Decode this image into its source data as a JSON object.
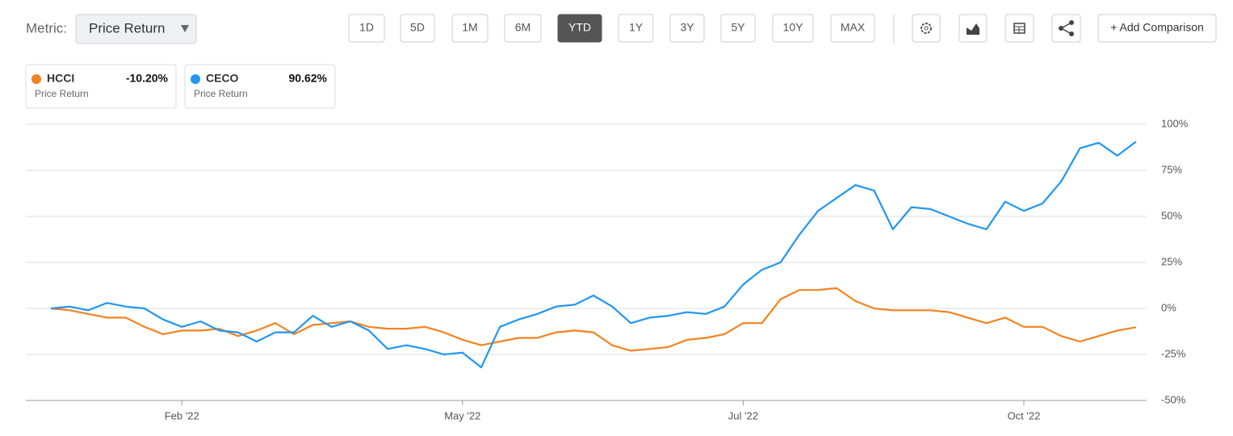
{
  "toolbar": {
    "metric_label": "Metric:",
    "metric_value": "Price Return",
    "ranges": [
      "1D",
      "5D",
      "1M",
      "6M",
      "YTD",
      "1Y",
      "3Y",
      "5Y",
      "10Y",
      "MAX"
    ],
    "selected": "YTD",
    "add_button": "+ Add Comparison"
  },
  "chart_data": {
    "type": "line",
    "categories": [
      null,
      null,
      null,
      null,
      null,
      null,
      null,
      "Feb '22",
      null,
      null,
      null,
      null,
      null,
      null,
      null,
      null,
      null,
      null,
      null,
      null,
      null,
      null,
      "May '22",
      null,
      null,
      null,
      null,
      null,
      null,
      null,
      null,
      null,
      null,
      null,
      null,
      null,
      null,
      "Jul '22",
      null,
      null,
      null,
      null,
      null,
      null,
      null,
      null,
      null,
      null,
      null,
      null,
      null,
      null,
      "Oct '22",
      null,
      null,
      null,
      null,
      null,
      null
    ],
    "series": [
      {
        "name": "HCCI",
        "color": "#f5821f",
        "metric": "Price Return",
        "change": {
          "value": -10.2,
          "label": "-10.20%"
        },
        "values": [
          0,
          -1,
          -3,
          -5,
          -5,
          -10,
          -14,
          -12,
          -12,
          -11,
          -15,
          -12,
          -8,
          -14,
          -9,
          -8,
          -7,
          -10,
          -11,
          -11,
          -10,
          -13,
          -17,
          -20,
          -18,
          -16,
          -16,
          -13,
          -12,
          -13,
          -20,
          -23,
          -22,
          -21,
          -17,
          -16,
          -14,
          -8,
          -8,
          5,
          10,
          10,
          11,
          4,
          0,
          -1,
          -1,
          -1,
          -2,
          -5,
          -8,
          -5,
          -10,
          -10,
          -15,
          -18,
          -15,
          -12,
          -10.2
        ]
      },
      {
        "name": "CECO",
        "color": "#2196f3",
        "metric": "Price Return",
        "change": {
          "value": 90.62,
          "label": "90.62%"
        },
        "values": [
          0,
          1,
          -1,
          3,
          1,
          0,
          -6,
          -10,
          -7,
          -12,
          -13,
          -18,
          -13,
          -13,
          -4,
          -10,
          -7,
          -12,
          -22,
          -20,
          -22,
          -25,
          -24,
          -32,
          -10,
          -6,
          -3,
          1,
          2,
          7,
          1,
          -8,
          -5,
          -4,
          -2,
          -3,
          1,
          13,
          21,
          25,
          40,
          53,
          60,
          67,
          64,
          43,
          55,
          54,
          50,
          46,
          43,
          58,
          53,
          57,
          69,
          87,
          90,
          83,
          90.62
        ]
      }
    ],
    "ylim": [
      -50,
      100
    ],
    "yticks": [
      {
        "value": -50,
        "label": "-50%"
      },
      {
        "value": -25,
        "label": "-25%"
      },
      {
        "value": 0,
        "label": "0%"
      },
      {
        "value": 25,
        "label": "25%"
      },
      {
        "value": 50,
        "label": "50%"
      },
      {
        "value": 75,
        "label": "75%"
      },
      {
        "value": 100,
        "label": "100%"
      }
    ],
    "grid": true
  }
}
